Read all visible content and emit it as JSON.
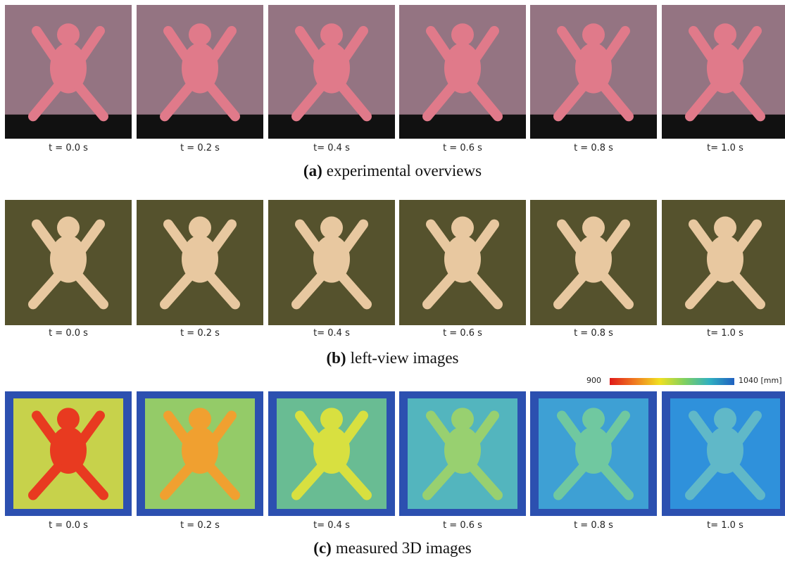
{
  "rows": [
    {
      "frames": [
        "t = 0.0 s",
        "t = 0.2 s",
        "t= 0.4 s",
        "t = 0.6 s",
        "t = 0.8 s",
        "t= 1.0 s"
      ],
      "caption": {
        "label": "(a)",
        "text": "experimental overviews"
      }
    },
    {
      "frames": [
        "t = 0.0 s",
        "t = 0.2 s",
        "t= 0.4 s",
        "t = 0.6 s",
        "t = 0.8 s",
        "t= 1.0 s"
      ],
      "caption": {
        "label": "(b)",
        "text": "left-view images"
      }
    },
    {
      "frames": [
        "t = 0.0 s",
        "t = 0.2 s",
        "t= 0.4 s",
        "t = 0.6 s",
        "t = 0.8 s",
        "t= 1.0 s"
      ],
      "caption": {
        "label": "(c)",
        "text": "measured 3D images"
      }
    }
  ],
  "colorbar": {
    "min": "900",
    "max": "1040 [mm]"
  }
}
